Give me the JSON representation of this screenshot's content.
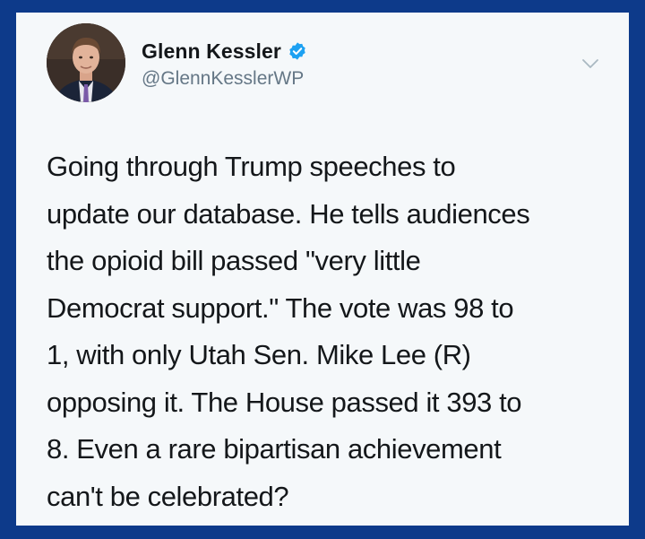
{
  "tweet": {
    "author": {
      "display_name": "Glenn Kessler",
      "handle": "@GlennKesslerWP",
      "verified": true,
      "avatar_icon": "profile-photo"
    },
    "menu_icon": "chevron-down-icon",
    "text": "Going through Trump speeches to\nupdate our database. He tells audiences\nthe opioid bill passed \"very little\nDemocrat support.\" The vote was 98 to\n1, with only Utah Sen. Mike Lee (R)\nopposing it. The House passed it 393 to\n8. Even a rare bipartisan achievement\ncan't be celebrated?"
  },
  "colors": {
    "frame": "#0d3a8a",
    "card": "#f5f8fa",
    "text": "#14171a",
    "handle": "#657786",
    "verified": "#1da1f2"
  }
}
